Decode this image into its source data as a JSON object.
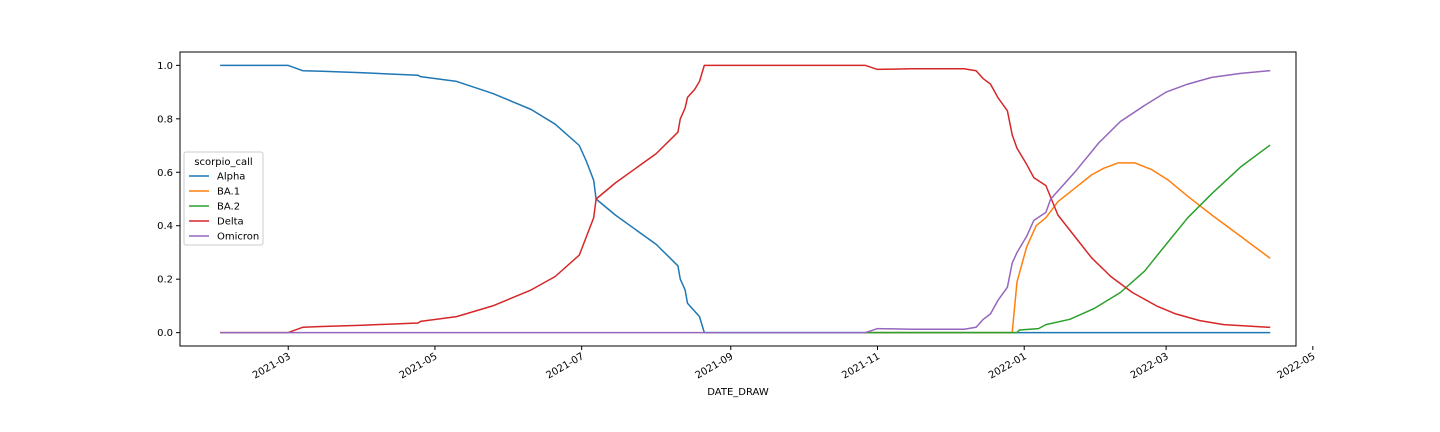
{
  "chart_data": {
    "type": "line",
    "title": "",
    "xlabel": "DATE_DRAW",
    "ylabel": "",
    "xlim": [
      "2021-01-15",
      "2022-04-24"
    ],
    "ylim": [
      -0.05,
      1.05
    ],
    "x_ticks": [
      "2021-03-01",
      "2021-05-01",
      "2021-07-01",
      "2021-09-01",
      "2021-11-01",
      "2022-01-01",
      "2022-03-01",
      "2022-05-01"
    ],
    "x_tick_labels": [
      "2021-03",
      "2021-05",
      "2021-07",
      "2021-09",
      "2021-11",
      "2022-01",
      "2022-03",
      "2022-05"
    ],
    "y_ticks": [
      0.0,
      0.2,
      0.4,
      0.6,
      0.8,
      1.0
    ],
    "y_tick_labels": [
      "0.0",
      "0.2",
      "0.4",
      "0.6",
      "0.8",
      "1.0"
    ],
    "grid": false,
    "legend": {
      "title": "scorpio_call",
      "placement": "center-left"
    },
    "series": [
      {
        "name": "Alpha",
        "color": "#1f77b4",
        "points": [
          [
            "2021-02-01",
            1.0
          ],
          [
            "2021-03-01",
            1.0
          ],
          [
            "2021-03-07",
            0.98
          ],
          [
            "2021-03-15",
            0.978
          ],
          [
            "2021-04-01",
            0.972
          ],
          [
            "2021-04-24",
            0.963
          ],
          [
            "2021-04-25",
            0.958
          ],
          [
            "2021-05-10",
            0.94
          ],
          [
            "2021-05-25",
            0.895
          ],
          [
            "2021-06-10",
            0.835
          ],
          [
            "2021-06-20",
            0.78
          ],
          [
            "2021-06-30",
            0.7
          ],
          [
            "2021-07-03",
            0.64
          ],
          [
            "2021-07-06",
            0.57
          ],
          [
            "2021-07-07",
            0.5
          ],
          [
            "2021-07-15",
            0.44
          ],
          [
            "2021-08-01",
            0.33
          ],
          [
            "2021-08-10",
            0.25
          ],
          [
            "2021-08-11",
            0.2
          ],
          [
            "2021-08-13",
            0.16
          ],
          [
            "2021-08-14",
            0.11
          ],
          [
            "2021-08-17",
            0.08
          ],
          [
            "2021-08-19",
            0.06
          ],
          [
            "2021-08-21",
            0.0
          ],
          [
            "2022-04-13",
            0.0
          ]
        ]
      },
      {
        "name": "BA.1",
        "color": "#ff7f0e",
        "points": [
          [
            "2021-10-27",
            0.0
          ],
          [
            "2021-12-27",
            0.0
          ],
          [
            "2021-12-29",
            0.19
          ],
          [
            "2022-01-02",
            0.32
          ],
          [
            "2022-01-06",
            0.4
          ],
          [
            "2022-01-10",
            0.43
          ],
          [
            "2022-01-15",
            0.49
          ],
          [
            "2022-01-22",
            0.54
          ],
          [
            "2022-01-29",
            0.59
          ],
          [
            "2022-02-03",
            0.615
          ],
          [
            "2022-02-09",
            0.635
          ],
          [
            "2022-02-16",
            0.635
          ],
          [
            "2022-02-23",
            0.61
          ],
          [
            "2022-03-02",
            0.57
          ],
          [
            "2022-03-10",
            0.51
          ],
          [
            "2022-03-20",
            0.44
          ],
          [
            "2022-04-01",
            0.36
          ],
          [
            "2022-04-13",
            0.28
          ]
        ]
      },
      {
        "name": "BA.2",
        "color": "#2ca02c",
        "points": [
          [
            "2021-10-27",
            0.0
          ],
          [
            "2021-12-29",
            0.0
          ],
          [
            "2021-12-30",
            0.01
          ],
          [
            "2022-01-07",
            0.015
          ],
          [
            "2022-01-10",
            0.03
          ],
          [
            "2022-01-20",
            0.05
          ],
          [
            "2022-01-30",
            0.09
          ],
          [
            "2022-02-10",
            0.15
          ],
          [
            "2022-02-20",
            0.23
          ],
          [
            "2022-03-01",
            0.33
          ],
          [
            "2022-03-10",
            0.43
          ],
          [
            "2022-03-20",
            0.52
          ],
          [
            "2022-04-01",
            0.62
          ],
          [
            "2022-04-13",
            0.7
          ]
        ]
      },
      {
        "name": "Delta",
        "color": "#d62728",
        "points": [
          [
            "2021-02-01",
            0.0
          ],
          [
            "2021-03-01",
            0.0
          ],
          [
            "2021-03-07",
            0.02
          ],
          [
            "2021-03-15",
            0.023
          ],
          [
            "2021-04-01",
            0.028
          ],
          [
            "2021-04-24",
            0.036
          ],
          [
            "2021-04-25",
            0.042
          ],
          [
            "2021-05-10",
            0.06
          ],
          [
            "2021-05-25",
            0.1
          ],
          [
            "2021-06-10",
            0.16
          ],
          [
            "2021-06-20",
            0.21
          ],
          [
            "2021-06-30",
            0.29
          ],
          [
            "2021-07-03",
            0.36
          ],
          [
            "2021-07-06",
            0.43
          ],
          [
            "2021-07-07",
            0.5
          ],
          [
            "2021-07-15",
            0.56
          ],
          [
            "2021-08-01",
            0.67
          ],
          [
            "2021-08-10",
            0.75
          ],
          [
            "2021-08-11",
            0.8
          ],
          [
            "2021-08-13",
            0.84
          ],
          [
            "2021-08-14",
            0.88
          ],
          [
            "2021-08-17",
            0.91
          ],
          [
            "2021-08-19",
            0.94
          ],
          [
            "2021-08-21",
            1.0
          ],
          [
            "2021-10-27",
            1.0
          ],
          [
            "2021-11-01",
            0.985
          ],
          [
            "2021-11-15",
            0.987
          ],
          [
            "2021-12-07",
            0.987
          ],
          [
            "2021-12-12",
            0.98
          ],
          [
            "2021-12-15",
            0.95
          ],
          [
            "2021-12-18",
            0.93
          ],
          [
            "2021-12-21",
            0.88
          ],
          [
            "2021-12-25",
            0.83
          ],
          [
            "2021-12-27",
            0.74
          ],
          [
            "2021-12-29",
            0.69
          ],
          [
            "2022-01-02",
            0.63
          ],
          [
            "2022-01-05",
            0.58
          ],
          [
            "2022-01-10",
            0.55
          ],
          [
            "2022-01-15",
            0.44
          ],
          [
            "2022-01-22",
            0.36
          ],
          [
            "2022-01-29",
            0.28
          ],
          [
            "2022-02-06",
            0.21
          ],
          [
            "2022-02-15",
            0.15
          ],
          [
            "2022-02-25",
            0.1
          ],
          [
            "2022-03-05",
            0.07
          ],
          [
            "2022-03-15",
            0.045
          ],
          [
            "2022-03-25",
            0.03
          ],
          [
            "2022-04-13",
            0.02
          ]
        ]
      },
      {
        "name": "Omicron",
        "color": "#9467bd",
        "points": [
          [
            "2021-02-01",
            0.0
          ],
          [
            "2021-10-27",
            0.0
          ],
          [
            "2021-11-01",
            0.015
          ],
          [
            "2021-11-15",
            0.013
          ],
          [
            "2021-12-07",
            0.013
          ],
          [
            "2021-12-12",
            0.02
          ],
          [
            "2021-12-15",
            0.05
          ],
          [
            "2021-12-18",
            0.07
          ],
          [
            "2021-12-21",
            0.12
          ],
          [
            "2021-12-25",
            0.17
          ],
          [
            "2021-12-27",
            0.26
          ],
          [
            "2021-12-29",
            0.3
          ],
          [
            "2022-01-02",
            0.36
          ],
          [
            "2022-01-05",
            0.42
          ],
          [
            "2022-01-10",
            0.45
          ],
          [
            "2022-01-12",
            0.5
          ],
          [
            "2022-01-22",
            0.6
          ],
          [
            "2022-02-01",
            0.71
          ],
          [
            "2022-02-10",
            0.79
          ],
          [
            "2022-02-20",
            0.85
          ],
          [
            "2022-03-01",
            0.9
          ],
          [
            "2022-03-10",
            0.93
          ],
          [
            "2022-03-20",
            0.955
          ],
          [
            "2022-04-01",
            0.97
          ],
          [
            "2022-04-13",
            0.98
          ]
        ]
      }
    ]
  }
}
